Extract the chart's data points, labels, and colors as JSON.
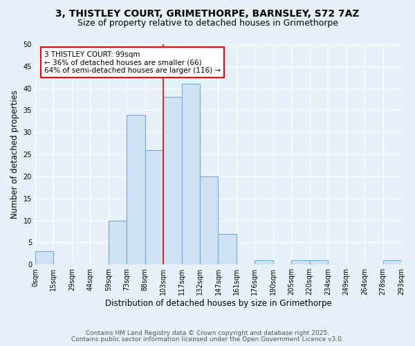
{
  "title": "3, THISTLEY COURT, GRIMETHORPE, BARNSLEY, S72 7AZ",
  "subtitle": "Size of property relative to detached houses in Grimethorpe",
  "xlabel": "Distribution of detached houses by size in Grimethorpe",
  "ylabel": "Number of detached properties",
  "bar_values": [
    3,
    0,
    0,
    0,
    10,
    34,
    26,
    38,
    41,
    20,
    7,
    0,
    1,
    0,
    1,
    1,
    0,
    0,
    0,
    1
  ],
  "bin_labels": [
    "0sqm",
    "15sqm",
    "29sqm",
    "44sqm",
    "59sqm",
    "73sqm",
    "88sqm",
    "103sqm",
    "117sqm",
    "132sqm",
    "147sqm",
    "161sqm",
    "176sqm",
    "190sqm",
    "205sqm",
    "220sqm",
    "234sqm",
    "249sqm",
    "264sqm",
    "278sqm",
    "293sqm"
  ],
  "bar_color": "#cfe2f3",
  "bar_edge_color": "#6aabdb",
  "vline_x": 7.0,
  "vline_color": "#ff0000",
  "annotation_text": "3 THISTLEY COURT: 99sqm\n← 36% of detached houses are smaller (66)\n64% of semi-detached houses are larger (116) →",
  "annotation_box_color": "#ffffff",
  "annotation_box_edge": "#ff0000",
  "ylim": [
    0,
    50
  ],
  "yticks": [
    0,
    5,
    10,
    15,
    20,
    25,
    30,
    35,
    40,
    45,
    50
  ],
  "bg_color": "#e8f0fa",
  "plot_bg_color": "#e8f0fa",
  "grid_color": "#ffffff",
  "title_fontsize": 10,
  "subtitle_fontsize": 9,
  "label_fontsize": 8.5,
  "tick_fontsize": 7,
  "annotation_fontsize": 7.5,
  "footer_fontsize": 6.5,
  "footer_line1": "Contains HM Land Registry data © Crown copyright and database right 2025.",
  "footer_line2": "Contains public sector information licensed under the Open Government Licence v3.0."
}
